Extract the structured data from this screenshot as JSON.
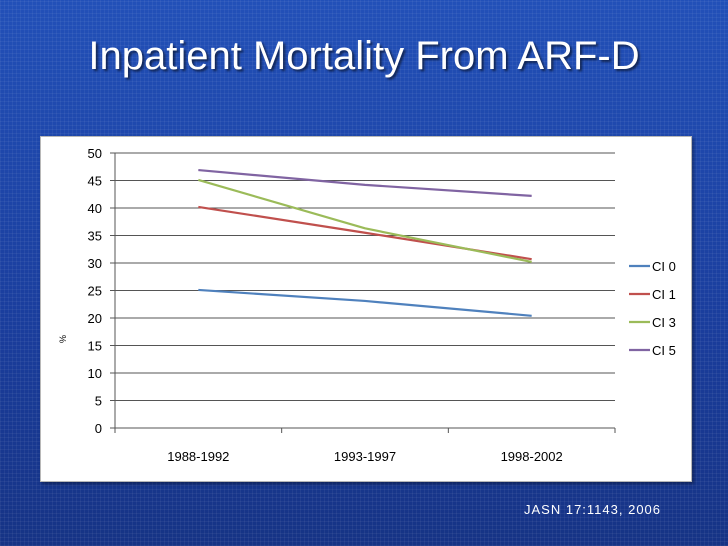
{
  "slide": {
    "title": "Inpatient Mortality From ARF-D",
    "citation": "JASN 17:1143, 2006"
  },
  "chart_data": {
    "type": "line",
    "title": "",
    "xlabel": "",
    "ylabel": "%",
    "ylim": [
      0,
      50
    ],
    "yticks": [
      0,
      5,
      10,
      15,
      20,
      25,
      30,
      35,
      40,
      45,
      50
    ],
    "categories": [
      "1988-1992",
      "1993-1997",
      "1998-2002"
    ],
    "grid": true,
    "legend_position": "right",
    "series": [
      {
        "name": "CI 0",
        "values": [
          25.1,
          23.1,
          20.4
        ],
        "color": "#4f81bd"
      },
      {
        "name": "CI 1",
        "values": [
          40.2,
          35.5,
          30.7
        ],
        "color": "#c0504d"
      },
      {
        "name": "CI 3",
        "values": [
          45.1,
          36.3,
          30.2
        ],
        "color": "#9bbb59"
      },
      {
        "name": "CI 5",
        "values": [
          46.9,
          44.2,
          42.2
        ],
        "color": "#8064a2"
      }
    ]
  }
}
